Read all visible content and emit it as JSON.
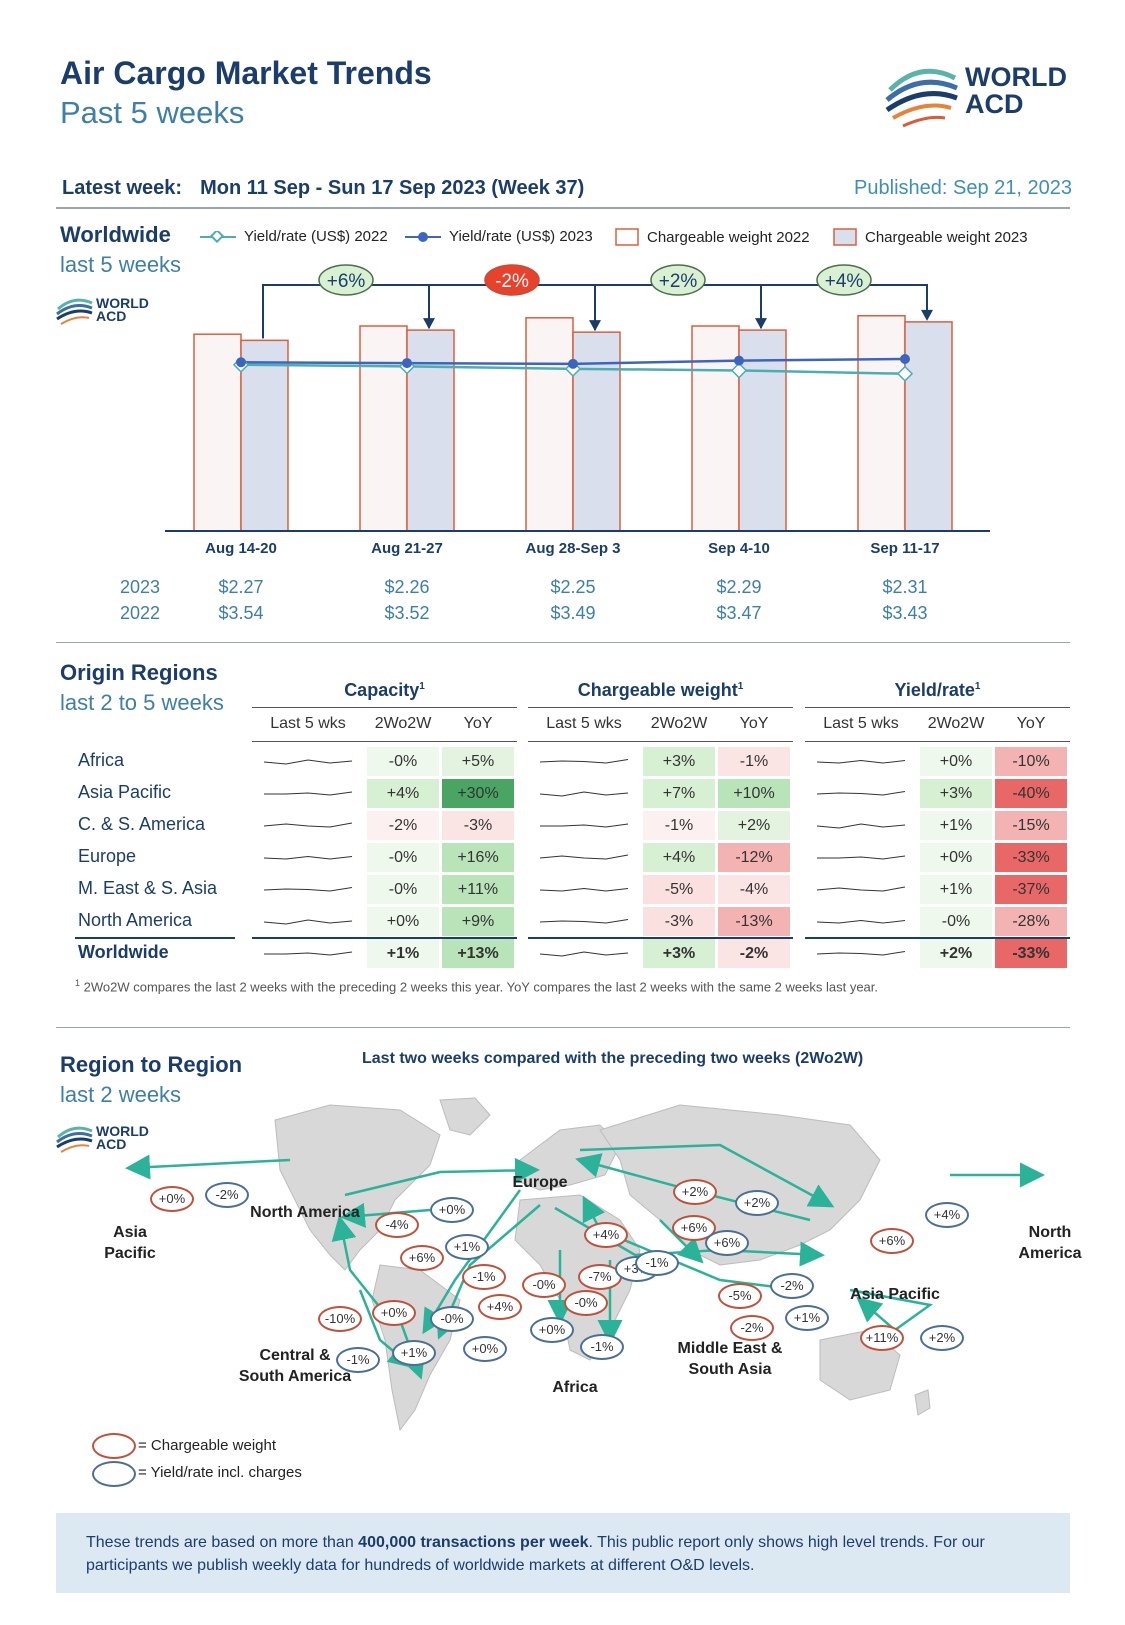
{
  "header": {
    "title": "Air Cargo Market Trends",
    "subtitle": "Past 5 weeks",
    "logo_line1": "WORLD",
    "logo_line2": "ACD",
    "latest_label": "Latest week:",
    "latest_dates": "Mon 11 Sep - Sun 17 Sep 2023 (Week 37)",
    "published": "Published: Sep 21, 2023"
  },
  "worldwide": {
    "title": "Worldwide",
    "subtitle": "last 5 weeks",
    "legend": [
      "Yield/rate (US$) 2022",
      "Yield/rate (US$) 2023",
      "Chargeable weight 2022",
      "Chargeable weight 2023"
    ],
    "row_label_2023": "2023",
    "row_label_2022": "2022"
  },
  "chart_data": {
    "type": "bar",
    "categories": [
      "Aug 14-20",
      "Aug 21-27",
      "Aug 28-Sep 3",
      "Sep 4-10",
      "Sep 11-17"
    ],
    "series": [
      {
        "name": "Chargeable weight 2022",
        "values": [
          96,
          100,
          104,
          100,
          105
        ]
      },
      {
        "name": "Chargeable weight 2023",
        "values": [
          93,
          98,
          97,
          98,
          102
        ]
      },
      {
        "name": "Yield/rate (US$) 2022",
        "values": [
          3.54,
          3.52,
          3.49,
          3.47,
          3.43
        ]
      },
      {
        "name": "Yield/rate (US$) 2023",
        "values": [
          2.27,
          2.26,
          2.25,
          2.29,
          2.31
        ]
      }
    ],
    "yield_2023_labels": [
      "$2.27",
      "$2.26",
      "$2.25",
      "$2.29",
      "$2.31"
    ],
    "yield_2022_labels": [
      "$3.54",
      "$3.52",
      "$3.49",
      "$3.47",
      "$3.43"
    ],
    "changes": [
      "+6%",
      "-2%",
      "+2%",
      "+4%"
    ],
    "change_colors": [
      "#d9f0d3",
      "#e8412c",
      "#d9f0d3",
      "#d9f0d3"
    ]
  },
  "origin": {
    "title": "Origin Regions",
    "subtitle": "last 2 to 5 weeks",
    "groups": [
      "Capacity",
      "Chargeable weight",
      "Yield/rate"
    ],
    "sup": "1",
    "col_heads": [
      "Last 5 wks",
      "2Wo2W",
      "YoY"
    ],
    "rows": [
      {
        "label": "Africa",
        "cap": [
          "-0%",
          "+5%"
        ],
        "cw": [
          "+3%",
          "-1%"
        ],
        "yr": [
          "+0%",
          "-10%"
        ]
      },
      {
        "label": "Asia Pacific",
        "cap": [
          "+4%",
          "+30%"
        ],
        "cw": [
          "+7%",
          "+10%"
        ],
        "yr": [
          "+3%",
          "-40%"
        ]
      },
      {
        "label": "C. & S. America",
        "cap": [
          "-2%",
          "-3%"
        ],
        "cw": [
          "-1%",
          "+2%"
        ],
        "yr": [
          "+1%",
          "-15%"
        ]
      },
      {
        "label": "Europe",
        "cap": [
          "-0%",
          "+16%"
        ],
        "cw": [
          "+4%",
          "-12%"
        ],
        "yr": [
          "+0%",
          "-33%"
        ]
      },
      {
        "label": "M. East & S. Asia",
        "cap": [
          "-0%",
          "+11%"
        ],
        "cw": [
          "-5%",
          "-4%"
        ],
        "yr": [
          "+1%",
          "-37%"
        ]
      },
      {
        "label": "North America",
        "cap": [
          "+0%",
          "+9%"
        ],
        "cw": [
          "-3%",
          "-13%"
        ],
        "yr": [
          "-0%",
          "-28%"
        ]
      },
      {
        "label": "Worldwide",
        "cap": [
          "+1%",
          "+13%"
        ],
        "cw": [
          "+3%",
          "-2%"
        ],
        "yr": [
          "+2%",
          "-33%"
        ]
      }
    ],
    "footnote": "2Wo2W compares the last 2 weeks with the preceding 2 weeks this year. YoY compares the last 2 weeks with the same 2 weeks last year."
  },
  "region": {
    "title": "Region to Region",
    "subtitle": "last 2 weeks",
    "map_title": "Last two weeks compared with the preceding two weeks (2Wo2W)",
    "labels": [
      "Asia Pacific",
      "North America",
      "Europe",
      "Asia Pacific",
      "North America",
      "Central & South America",
      "Africa",
      "Middle East & South Asia"
    ],
    "legend_weight": "= Chargeable weight",
    "legend_yield": "= Yield/rate incl. charges"
  },
  "bottom": {
    "text1": "These trends are based on more than ",
    "text_bold": "400,000 transactions per week",
    "text2": ". This public report only shows high level trends. For our participants we publish weekly data for hundreds of worldwide markets at different O&D levels."
  }
}
